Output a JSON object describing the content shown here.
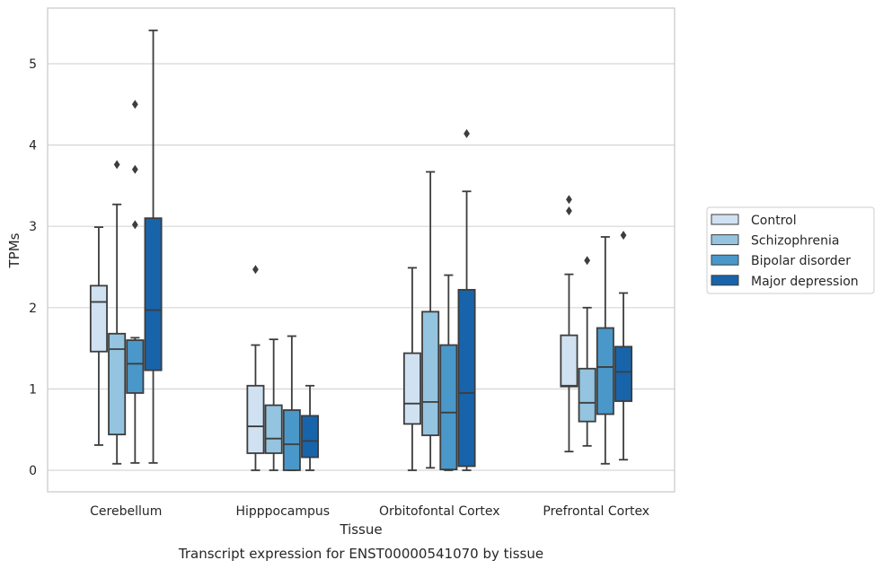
{
  "chart_data": {
    "type": "box",
    "caption": "Transcript expression for ENST00000541070 by tissue",
    "xlabel": "Tissue",
    "ylabel": "TPMs",
    "ylim": [
      -0.25,
      5.7
    ],
    "yticks": [
      0,
      1,
      2,
      3,
      4,
      5
    ],
    "grid": "horizontal",
    "legend_position": "right",
    "categories": [
      "Cerebellum",
      "Hipppocampus",
      "Orbitofontal Cortex",
      "Prefrontal Cortex"
    ],
    "series": [
      {
        "name": "Control",
        "color": "#d0e1f2",
        "boxes": [
          {
            "whisker_low": 0.31,
            "q1": 1.46,
            "median": 2.07,
            "q3": 2.27,
            "whisker_high": 2.99,
            "outliers": []
          },
          {
            "whisker_low": 0.0,
            "q1": 0.21,
            "median": 0.54,
            "q3": 1.04,
            "whisker_high": 1.54,
            "outliers": [
              2.47
            ]
          },
          {
            "whisker_low": 0.0,
            "q1": 0.57,
            "median": 0.82,
            "q3": 1.44,
            "whisker_high": 2.49,
            "outliers": []
          },
          {
            "whisker_low": 0.23,
            "q1": 1.03,
            "median": 1.04,
            "q3": 1.66,
            "whisker_high": 2.41,
            "outliers": [
              3.19,
              3.33
            ]
          }
        ]
      },
      {
        "name": "Schizophrenia",
        "color": "#94c4df",
        "boxes": [
          {
            "whisker_low": 0.08,
            "q1": 0.44,
            "median": 1.49,
            "q3": 1.68,
            "whisker_high": 3.27,
            "outliers": [
              3.76
            ]
          },
          {
            "whisker_low": 0.0,
            "q1": 0.21,
            "median": 0.39,
            "q3": 0.8,
            "whisker_high": 1.61,
            "outliers": []
          },
          {
            "whisker_low": 0.03,
            "q1": 0.43,
            "median": 0.84,
            "q3": 1.95,
            "whisker_high": 3.67,
            "outliers": []
          },
          {
            "whisker_low": 0.3,
            "q1": 0.6,
            "median": 0.83,
            "q3": 1.25,
            "whisker_high": 2.0,
            "outliers": [
              2.58
            ]
          }
        ]
      },
      {
        "name": "Bipolar disorder",
        "color": "#4a98c9",
        "boxes": [
          {
            "whisker_low": 0.09,
            "q1": 0.95,
            "median": 1.31,
            "q3": 1.6,
            "whisker_high": 1.63,
            "outliers": [
              3.02,
              3.7,
              4.5
            ]
          },
          {
            "whisker_low": 0.0,
            "q1": 0.0,
            "median": 0.32,
            "q3": 0.74,
            "whisker_high": 1.65,
            "outliers": []
          },
          {
            "whisker_low": 0.0,
            "q1": 0.01,
            "median": 0.71,
            "q3": 1.54,
            "whisker_high": 2.4,
            "outliers": []
          },
          {
            "whisker_low": 0.08,
            "q1": 0.69,
            "median": 1.27,
            "q3": 1.75,
            "whisker_high": 2.87,
            "outliers": []
          }
        ]
      },
      {
        "name": "Major depression",
        "color": "#1764ab",
        "boxes": [
          {
            "whisker_low": 0.09,
            "q1": 1.23,
            "median": 1.97,
            "q3": 3.1,
            "whisker_high": 5.41,
            "outliers": []
          },
          {
            "whisker_low": 0.0,
            "q1": 0.16,
            "median": 0.36,
            "q3": 0.67,
            "whisker_high": 1.04,
            "outliers": []
          },
          {
            "whisker_low": 0.0,
            "q1": 0.05,
            "median": 0.95,
            "q3": 2.22,
            "whisker_high": 3.43,
            "outliers": [
              4.14
            ]
          },
          {
            "whisker_low": 0.13,
            "q1": 0.85,
            "median": 1.21,
            "q3": 1.52,
            "whisker_high": 2.18,
            "outliers": [
              2.89
            ]
          }
        ]
      }
    ]
  }
}
